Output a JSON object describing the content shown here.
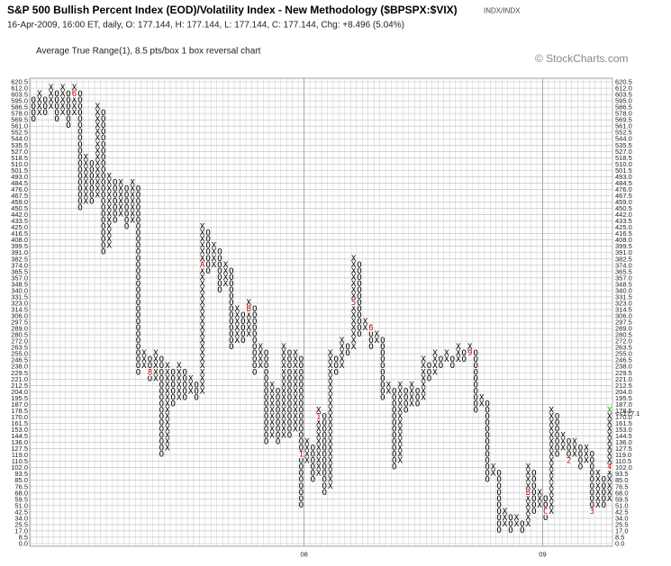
{
  "chart_data": {
    "type": "point_and_figure",
    "title": "S&P 500 Bullish Percent Index (EOD)/Volatility Index - New Methodology ($BPSPX:$VIX)",
    "exchange": "INDX/INDX",
    "subtitle": "16-Apr-2009, 16:00 ET, daily, O: 177.144, H: 177.144, L: 177.144, C: 177.144, Chg: +8.496 (5.04%)",
    "description": "Average True Range(1), 8.5 pts/box 1 box reversal chart",
    "watermark": "© StockCharts.com",
    "box_size": 8.5,
    "x_color": "#000000",
    "o_color": "#000000",
    "marker_color": "#cc0000",
    "last_box_color": "#00aa00",
    "grid": true,
    "ylim": [
      0,
      620.5
    ],
    "yticks": [
      {
        "value": 0,
        "label": "0.0"
      },
      8.5,
      {
        "value": 17,
        "label": "17.0"
      },
      25.5,
      {
        "value": 34,
        "label": "34.0"
      },
      42.5,
      {
        "value": 51,
        "label": "51.0"
      },
      59.5,
      {
        "value": 68,
        "label": "68.0"
      },
      76.5,
      {
        "value": 85,
        "label": "85.0"
      },
      93.5,
      {
        "value": 102,
        "label": "102.0"
      },
      110.5,
      {
        "value": 119,
        "label": "119.0"
      },
      127.5,
      {
        "value": 136,
        "label": "136.0"
      },
      144.5,
      {
        "value": 153,
        "label": "153.0"
      },
      161.5,
      {
        "value": 170,
        "label": "170.0"
      },
      178.5,
      {
        "value": 187,
        "label": "187.0"
      },
      195.5,
      {
        "value": 204,
        "label": "204.0"
      },
      212.5,
      {
        "value": 221,
        "label": "221.0"
      },
      229.5,
      {
        "value": 238,
        "label": "238.0"
      },
      246.5,
      {
        "value": 255,
        "label": "255.0"
      },
      263.5,
      {
        "value": 272,
        "label": "272.0"
      },
      280.5,
      {
        "value": 289,
        "label": "289.0"
      },
      297.5,
      {
        "value": 306,
        "label": "306.0"
      },
      314.5,
      {
        "value": 323,
        "label": "323.0"
      },
      331.5,
      {
        "value": 340,
        "label": "340.0"
      },
      348.5,
      {
        "value": 357,
        "label": "357.0"
      },
      365.5,
      {
        "value": 374,
        "label": "374.0"
      },
      382.5,
      {
        "value": 391,
        "label": "391.0"
      },
      399.5,
      {
        "value": 408,
        "label": "408.0"
      },
      416.5,
      {
        "value": 425,
        "label": "425.0"
      },
      433.5,
      {
        "value": 442,
        "label": "442.0"
      },
      450.5,
      {
        "value": 459,
        "label": "459.0"
      },
      467.5,
      {
        "value": 476,
        "label": "476.0"
      },
      484.5,
      {
        "value": 493,
        "label": "493.0"
      },
      501.5,
      {
        "value": 510,
        "label": "510.0"
      },
      518.5,
      {
        "value": 527,
        "label": "527.0"
      },
      535.5,
      {
        "value": 544,
        "label": "544.0"
      },
      552.5,
      {
        "value": 561,
        "label": "561.0"
      },
      569.5,
      {
        "value": 578,
        "label": "578.0"
      },
      586.5,
      {
        "value": 595,
        "label": "595.0"
      },
      603.5,
      {
        "value": 612,
        "label": "612.0"
      },
      620.5
    ],
    "columns": [
      {
        "type": "O",
        "low": 569.5,
        "high": 595
      },
      {
        "type": "X",
        "low": 578,
        "high": 603.5
      },
      {
        "type": "O",
        "low": 578,
        "high": 595
      },
      {
        "type": "X",
        "low": 586.5,
        "high": 612
      },
      {
        "type": "O",
        "low": 569.5,
        "high": 603.5
      },
      {
        "type": "X",
        "low": 578,
        "high": 612
      },
      {
        "type": "O",
        "low": 561,
        "high": 603.5
      },
      {
        "type": "X",
        "low": 578,
        "high": 612
      },
      {
        "type": "O",
        "low": 450.5,
        "high": 603.5
      },
      {
        "type": "X",
        "low": 459,
        "high": 518.5
      },
      {
        "type": "O",
        "low": 459,
        "high": 510
      },
      {
        "type": "X",
        "low": 467.5,
        "high": 586.5
      },
      {
        "type": "O",
        "low": 391,
        "high": 578
      },
      {
        "type": "X",
        "low": 399.5,
        "high": 493
      },
      {
        "type": "O",
        "low": 433.5,
        "high": 484.5
      },
      {
        "type": "X",
        "low": 442,
        "high": 484.5
      },
      {
        "type": "O",
        "low": 425,
        "high": 476
      },
      {
        "type": "X",
        "low": 433.5,
        "high": 484.5
      },
      {
        "type": "O",
        "low": 229.5,
        "high": 476
      },
      {
        "type": "X",
        "low": 238,
        "high": 255
      },
      {
        "type": "O",
        "low": 221,
        "high": 246.5
      },
      {
        "type": "X",
        "low": 221,
        "high": 255
      },
      {
        "type": "O",
        "low": 119,
        "high": 246.5
      },
      {
        "type": "X",
        "low": 127.5,
        "high": 238
      },
      {
        "type": "O",
        "low": 187,
        "high": 229.5
      },
      {
        "type": "X",
        "low": 195.5,
        "high": 238
      },
      {
        "type": "O",
        "low": 195.5,
        "high": 229.5
      },
      {
        "type": "X",
        "low": 204,
        "high": 221
      },
      {
        "type": "O",
        "low": 195.5,
        "high": 212.5
      },
      {
        "type": "X",
        "low": 204,
        "high": 425
      },
      {
        "type": "O",
        "low": 365.5,
        "high": 416.5
      },
      {
        "type": "X",
        "low": 374,
        "high": 399.5
      },
      {
        "type": "O",
        "low": 340,
        "high": 391
      },
      {
        "type": "X",
        "low": 348.5,
        "high": 374
      },
      {
        "type": "O",
        "low": 263.5,
        "high": 365.5
      },
      {
        "type": "X",
        "low": 272,
        "high": 314.5
      },
      {
        "type": "O",
        "low": 272,
        "high": 306
      },
      {
        "type": "X",
        "low": 280.5,
        "high": 323
      },
      {
        "type": "O",
        "low": 229.5,
        "high": 314.5
      },
      {
        "type": "X",
        "low": 238,
        "high": 263.5
      },
      {
        "type": "O",
        "low": 136,
        "high": 255
      },
      {
        "type": "X",
        "low": 144.5,
        "high": 212.5
      },
      {
        "type": "O",
        "low": 136,
        "high": 204
      },
      {
        "type": "X",
        "low": 144.5,
        "high": 263.5
      },
      {
        "type": "O",
        "low": 144.5,
        "high": 255
      },
      {
        "type": "X",
        "low": 153,
        "high": 255
      },
      {
        "type": "O",
        "low": 51,
        "high": 246.5
      },
      {
        "type": "X",
        "low": 110.5,
        "high": 136
      },
      {
        "type": "O",
        "low": 85,
        "high": 127.5
      },
      {
        "type": "X",
        "low": 93.5,
        "high": 178.5
      },
      {
        "type": "O",
        "low": 68,
        "high": 170
      },
      {
        "type": "X",
        "low": 76.5,
        "high": 255
      },
      {
        "type": "O",
        "low": 229.5,
        "high": 246.5
      },
      {
        "type": "X",
        "low": 238,
        "high": 272
      },
      {
        "type": "O",
        "low": 255,
        "high": 263.5
      },
      {
        "type": "X",
        "low": 263.5,
        "high": 382.5
      },
      {
        "type": "O",
        "low": 280.5,
        "high": 374
      },
      {
        "type": "X",
        "low": 289,
        "high": 297.5
      },
      {
        "type": "O",
        "low": 263.5,
        "high": 289
      },
      {
        "type": "X",
        "low": 272,
        "high": 280.5
      },
      {
        "type": "O",
        "low": 195.5,
        "high": 272
      },
      {
        "type": "X",
        "low": 204,
        "high": 212.5
      },
      {
        "type": "O",
        "low": 102,
        "high": 204
      },
      {
        "type": "X",
        "low": 110.5,
        "high": 212.5
      },
      {
        "type": "O",
        "low": 178.5,
        "high": 204
      },
      {
        "type": "X",
        "low": 187,
        "high": 212.5
      },
      {
        "type": "O",
        "low": 187,
        "high": 204
      },
      {
        "type": "X",
        "low": 195.5,
        "high": 246.5
      },
      {
        "type": "O",
        "low": 221,
        "high": 238
      },
      {
        "type": "X",
        "low": 229.5,
        "high": 255
      },
      {
        "type": "O",
        "low": 238,
        "high": 246.5
      },
      {
        "type": "X",
        "low": 246.5,
        "high": 255
      },
      {
        "type": "O",
        "low": 238,
        "high": 246.5
      },
      {
        "type": "X",
        "low": 246.5,
        "high": 263.5
      },
      {
        "type": "O",
        "low": 246.5,
        "high": 255
      },
      {
        "type": "X",
        "low": 255,
        "high": 263.5
      },
      {
        "type": "O",
        "low": 178.5,
        "high": 255
      },
      {
        "type": "X",
        "low": 187,
        "high": 195.5
      },
      {
        "type": "O",
        "low": 85,
        "high": 187
      },
      {
        "type": "X",
        "low": 93.5,
        "high": 102
      },
      {
        "type": "O",
        "low": 17,
        "high": 93.5
      },
      {
        "type": "X",
        "low": 25.5,
        "high": 42.5
      },
      {
        "type": "O",
        "low": 17,
        "high": 34
      },
      {
        "type": "X",
        "low": 25.5,
        "high": 34
      },
      {
        "type": "O",
        "low": 17,
        "high": 25.5
      },
      {
        "type": "X",
        "low": 25.5,
        "high": 102
      },
      {
        "type": "O",
        "low": 42.5,
        "high": 93.5
      },
      {
        "type": "X",
        "low": 51,
        "high": 68
      },
      {
        "type": "O",
        "low": 34,
        "high": 59.5
      },
      {
        "type": "X",
        "low": 42.5,
        "high": 178.5
      },
      {
        "type": "O",
        "low": 119,
        "high": 170
      },
      {
        "type": "X",
        "low": 127.5,
        "high": 144.5
      },
      {
        "type": "O",
        "low": 110.5,
        "high": 136
      },
      {
        "type": "X",
        "low": 119,
        "high": 136
      },
      {
        "type": "O",
        "low": 102,
        "high": 127.5
      },
      {
        "type": "X",
        "low": 110.5,
        "high": 127.5
      },
      {
        "type": "O",
        "low": 42.5,
        "high": 119
      },
      {
        "type": "X",
        "low": 51,
        "high": 93.5
      },
      {
        "type": "O",
        "low": 51,
        "high": 85
      },
      {
        "type": "X",
        "low": 59.5,
        "high": 178.5
      }
    ],
    "month_markers": [
      {
        "label": "6",
        "column": 7,
        "value": 603.5
      },
      {
        "label": "8",
        "column": 20,
        "value": 229.5
      },
      {
        "label": "A",
        "column": 29,
        "value": 374
      },
      {
        "label": "B",
        "column": 37,
        "value": 314.5
      },
      {
        "label": "1",
        "column": 46,
        "value": 119
      },
      {
        "label": "1",
        "column": 49,
        "value": 170
      },
      {
        "label": "5",
        "column": 55,
        "value": 323
      },
      {
        "label": "6",
        "column": 58,
        "value": 289
      },
      {
        "label": "9",
        "column": 75,
        "value": 255
      },
      {
        "label": "B",
        "column": 85,
        "value": 68
      },
      {
        "label": "C",
        "column": 88,
        "value": 42.5
      },
      {
        "label": "2",
        "column": 92,
        "value": 110.5
      },
      {
        "label": "3",
        "column": 96,
        "value": 42.5
      },
      {
        "label": "4",
        "column": 99,
        "value": 102
      }
    ],
    "x_labels": [
      {
        "label": "08",
        "column": 47
      },
      {
        "label": "09",
        "column": 88
      }
    ],
    "last_price": {
      "label": "<<177.1",
      "value": 170
    }
  }
}
